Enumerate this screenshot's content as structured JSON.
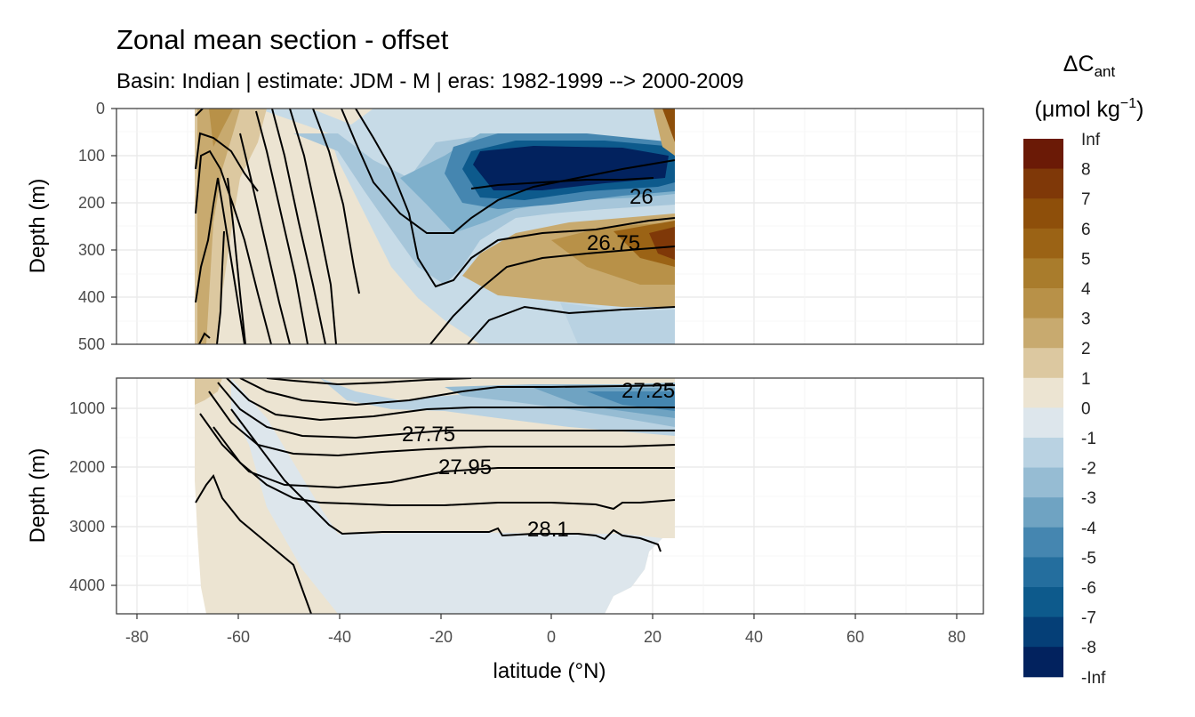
{
  "chart_data": {
    "type": "heatmap",
    "title": "Zonal mean section - offset",
    "subtitle": "Basin: Indian | estimate: JDM - M | eras: 1982-1999 --> 2000-2009",
    "xlabel": "latitude (°N)",
    "ylabel": "Depth (m)",
    "xlim": [
      -85,
      85
    ],
    "x_ticks": [
      -80,
      -60,
      -40,
      -20,
      0,
      20,
      40,
      60,
      80
    ],
    "panels": [
      {
        "name": "upper",
        "ylim": [
          500,
          0
        ],
        "y_ticks": [
          0,
          100,
          200,
          300,
          400,
          500
        ],
        "contour_labels": [
          {
            "text": "26",
            "lat": 18,
            "depth": 185
          },
          {
            "text": "26.75",
            "lat": 14,
            "depth": 285
          }
        ]
      },
      {
        "name": "lower",
        "ylim": [
          4500,
          500
        ],
        "y_ticks": [
          1000,
          2000,
          3000,
          4000
        ],
        "contour_labels": [
          {
            "text": "27.25",
            "lat": 20,
            "depth": 700
          },
          {
            "text": "27.75",
            "lat": -23,
            "depth": 1450
          },
          {
            "text": "27.95",
            "lat": -16,
            "depth": 2000
          },
          {
            "text": "28.1",
            "lat": 0,
            "depth": 3080
          }
        ]
      }
    ],
    "legend": {
      "title_main": "ΔC",
      "title_sub": "ant",
      "unit": "(μmol kg",
      "unit_sup": "−1",
      "unit_end": ")",
      "labels": [
        "Inf",
        "8",
        "7",
        "6",
        "5",
        "4",
        "3",
        "2",
        "1",
        "0",
        "-1",
        "-2",
        "-3",
        "-4",
        "-5",
        "-6",
        "-7",
        "-8",
        "-Inf"
      ],
      "colors": [
        "#6b1a06",
        "#7f3808",
        "#8e4f0a",
        "#9b6315",
        "#a97c2c",
        "#b89148",
        "#c8aa6f",
        "#dcc8a0",
        "#ece4d2",
        "#dde6ec",
        "#b9d2e2",
        "#96bcd3",
        "#6fa3c2",
        "#4586b0",
        "#246e9e",
        "#0d5a8c",
        "#053f77",
        "#02225e"
      ]
    }
  }
}
